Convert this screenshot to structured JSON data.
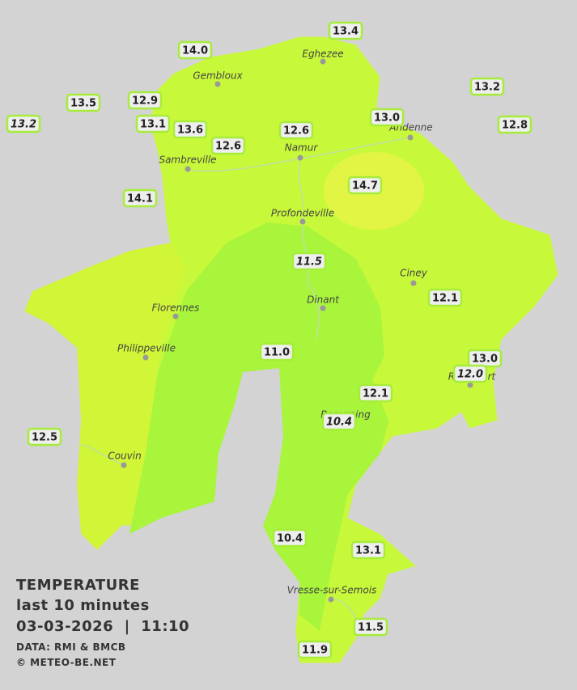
{
  "cities": [
    "Eghezee",
    "Gembloux",
    "Andenne",
    "Namur",
    "Sambreville",
    "Profondeville",
    "Ciney",
    "Dinant",
    "Florennes",
    "Philippeville",
    "Rochefort",
    "Beauraing",
    "Couvin",
    "Vresse-sur-Semois"
  ],
  "stations": [
    "13.4",
    "14.0",
    "12.9",
    "13.5",
    "13.2",
    "13.1",
    "13.6",
    "12.6",
    "12.6",
    "13.0",
    "13.2",
    "12.8",
    "14.7",
    "14.1",
    "11.5",
    "12.1",
    "11.0",
    "13.0",
    "12.0",
    "12.1",
    "10.4",
    "12.5",
    "10.4",
    "13.1",
    "11.5",
    "11.9"
  ],
  "legend": {
    "title": "TEMPERATURE",
    "period": "last 10 minutes",
    "datetime": "03-03-2026  |  11:10",
    "source": "DATA: RMI & BMCB",
    "copyright": "© METEO-BE.NET"
  }
}
